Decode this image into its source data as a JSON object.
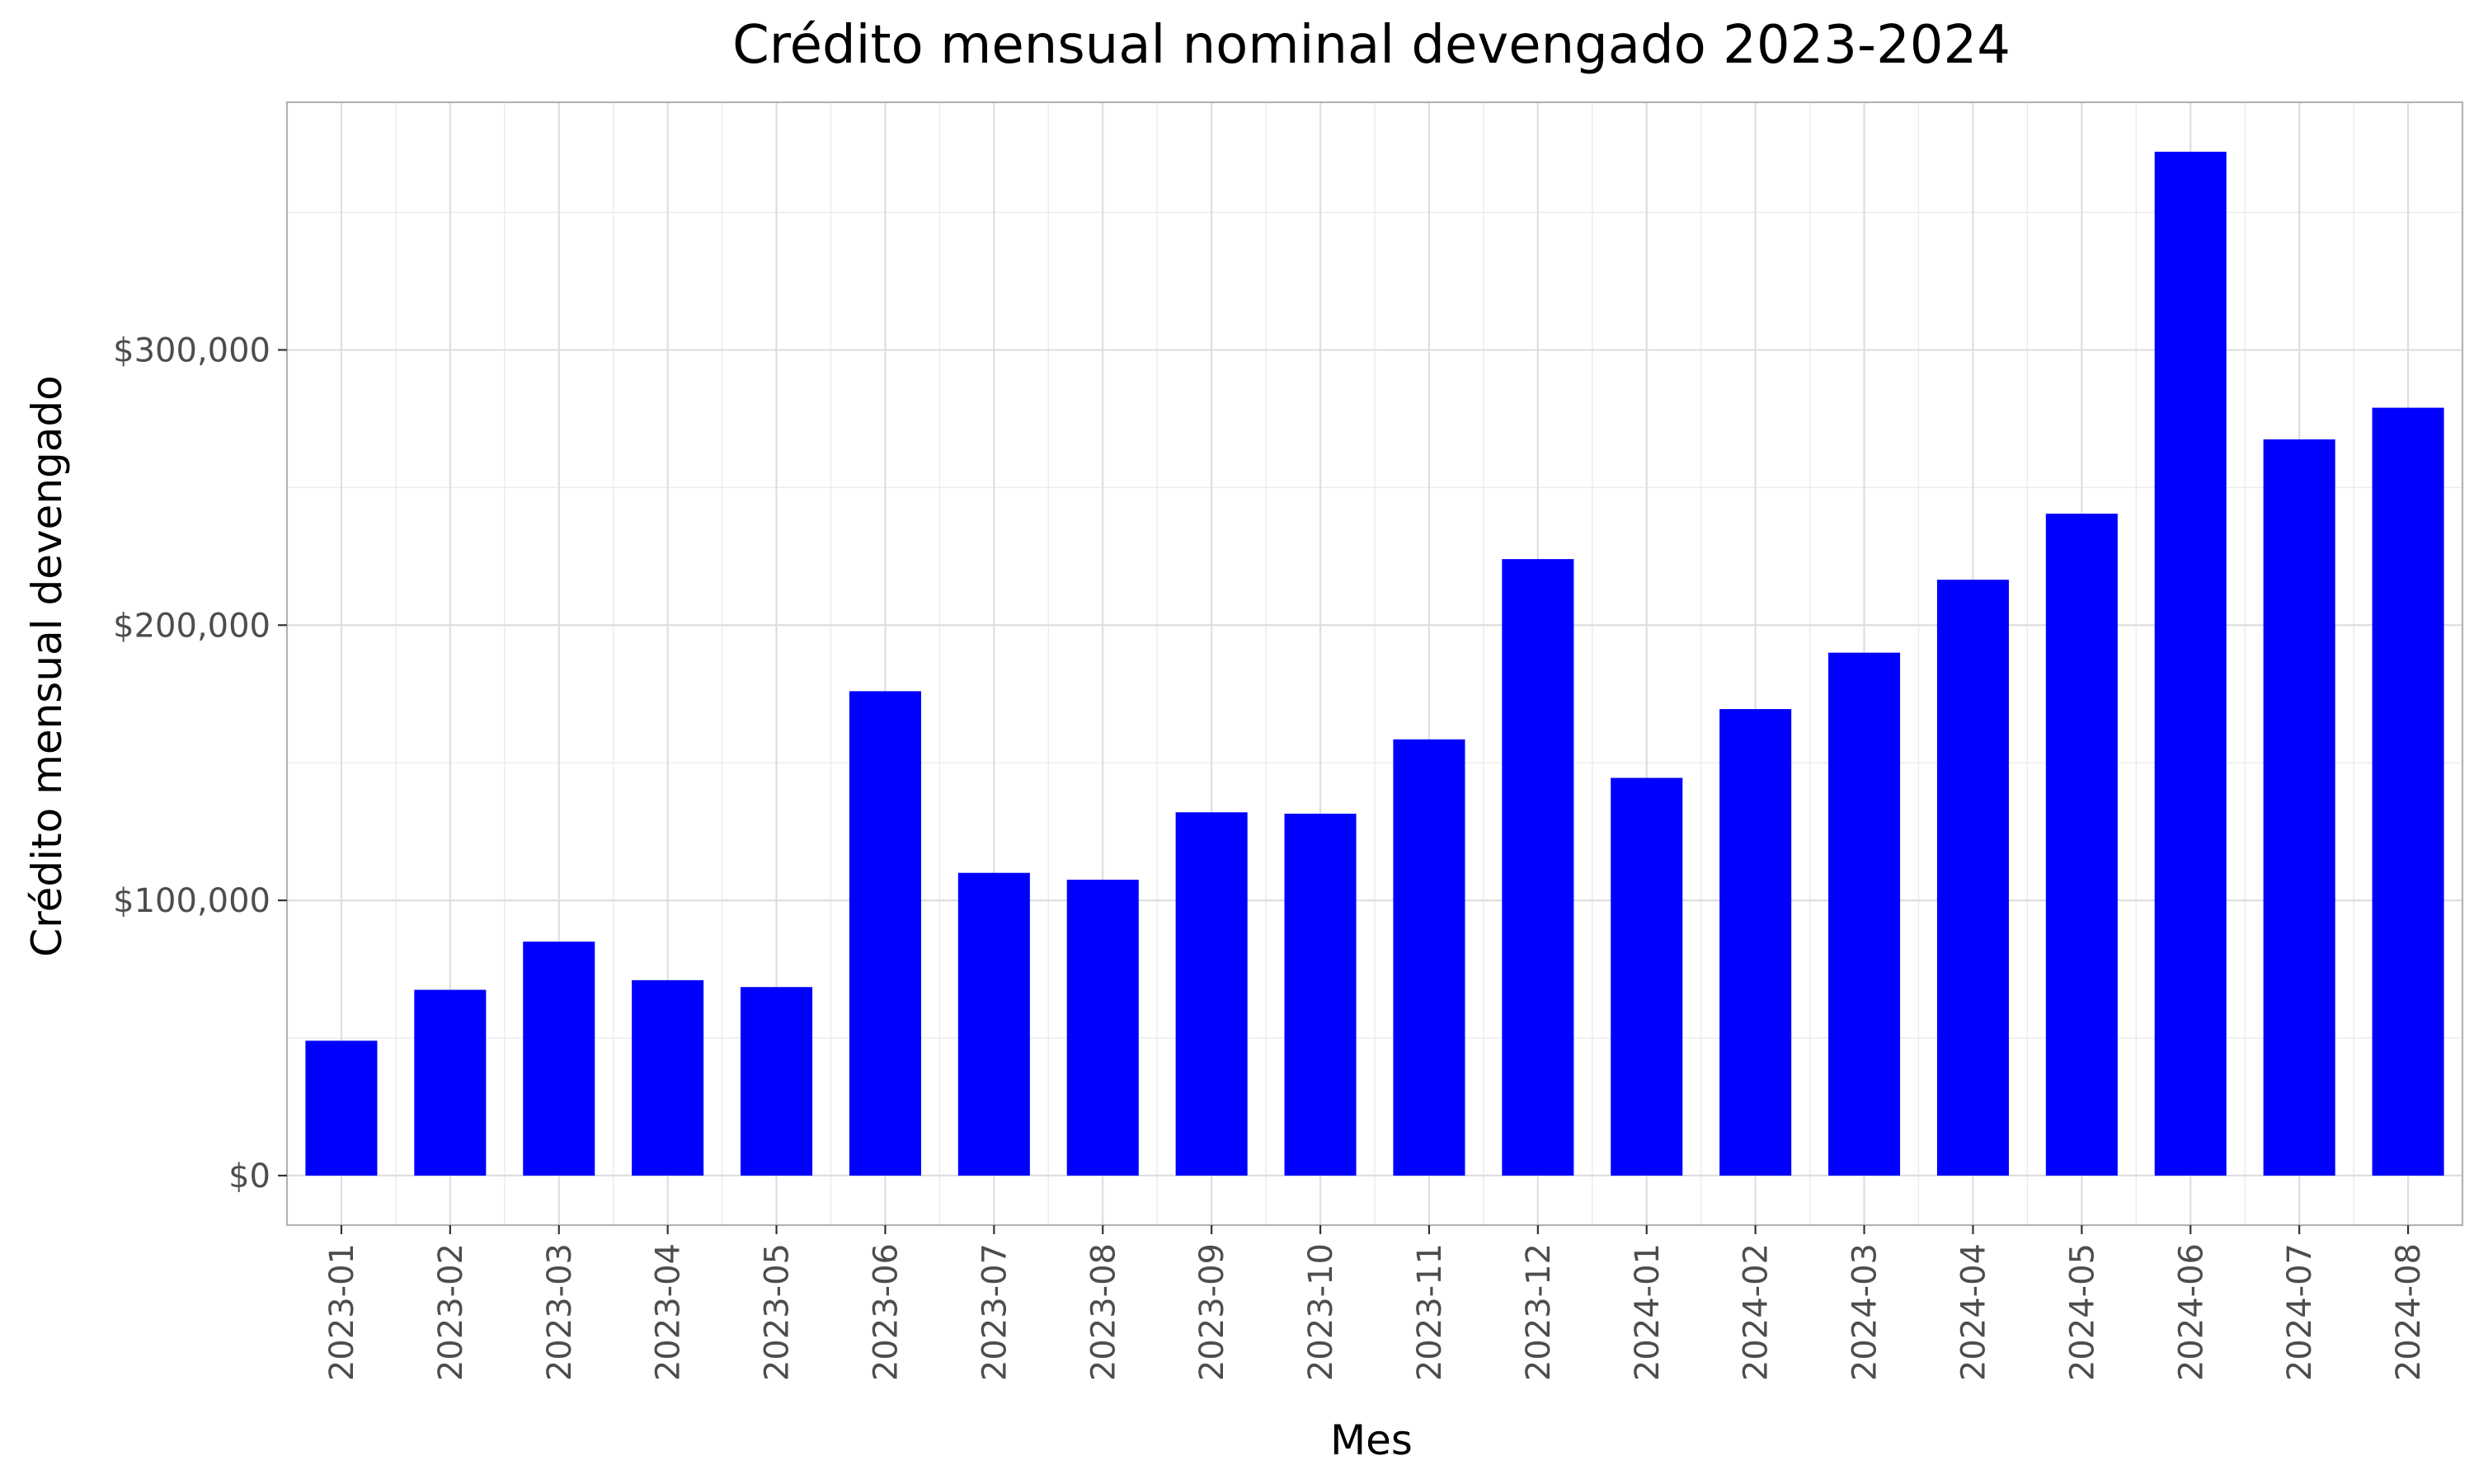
{
  "chart_data": {
    "type": "bar",
    "title": "Crédito mensual nominal devengado 2023-2024",
    "xlabel": "Mes",
    "ylabel": "Crédito mensual devengado",
    "categories": [
      "2023-01",
      "2023-02",
      "2023-03",
      "2023-04",
      "2023-05",
      "2023-06",
      "2023-07",
      "2023-08",
      "2023-09",
      "2023-10",
      "2023-11",
      "2023-12",
      "2024-01",
      "2024-02",
      "2024-03",
      "2024-04",
      "2024-05",
      "2024-06",
      "2024-07",
      "2024-08"
    ],
    "values": [
      49000,
      67500,
      85000,
      71000,
      68500,
      176000,
      110000,
      107500,
      132000,
      131500,
      158500,
      224000,
      144500,
      169500,
      190000,
      216500,
      240500,
      372000,
      267500,
      279000
    ],
    "ylim": [
      -18000,
      390000
    ],
    "y_ticks": [
      0,
      100000,
      200000,
      300000
    ],
    "y_tick_labels": [
      "$0",
      "$100,000",
      "$200,000",
      "$300,000"
    ],
    "bar_color": "#0000ff",
    "grid": true,
    "legend": "none"
  }
}
